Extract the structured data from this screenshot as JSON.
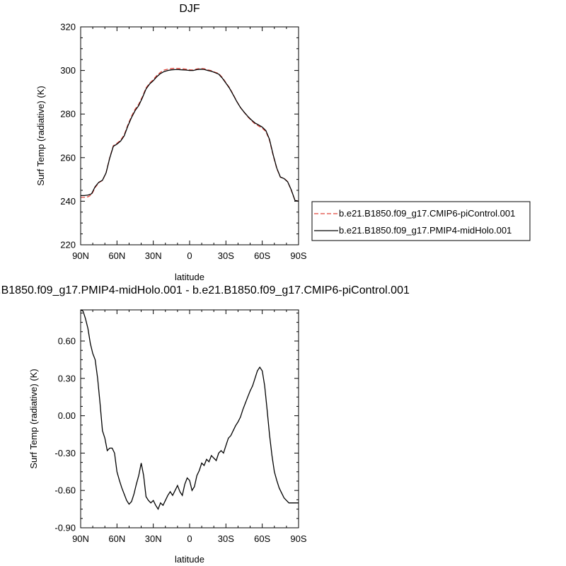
{
  "chart_data": [
    {
      "type": "line",
      "title": "DJF",
      "xlabel": "latitude",
      "ylabel": "Surf Temp (radiative) (K)",
      "xlim": [
        90,
        -90
      ],
      "ylim": [
        220,
        320
      ],
      "x_ticks": [
        {
          "value": 90,
          "label": "90N"
        },
        {
          "value": 60,
          "label": "60N"
        },
        {
          "value": 30,
          "label": "30N"
        },
        {
          "value": 0,
          "label": "0"
        },
        {
          "value": -30,
          "label": "30S"
        },
        {
          "value": -60,
          "label": "60S"
        },
        {
          "value": -90,
          "label": "90S"
        }
      ],
      "y_ticks": [
        {
          "value": 220,
          "label": "220"
        },
        {
          "value": 240,
          "label": "240"
        },
        {
          "value": 260,
          "label": "260"
        },
        {
          "value": 280,
          "label": "280"
        },
        {
          "value": 300,
          "label": "300"
        },
        {
          "value": 320,
          "label": "320"
        }
      ],
      "legend_position": "right",
      "series": [
        {
          "name": "b.e21.B1850.f09_g17.CMIP6-piControl.001",
          "color": "#e0463c",
          "dash": "dashed",
          "x": [
            90,
            87,
            84,
            81,
            78,
            75,
            72,
            69,
            66,
            63,
            60,
            57,
            54,
            51,
            48,
            45,
            42,
            39,
            36,
            33,
            30,
            27,
            24,
            21,
            18,
            15,
            12,
            9,
            6,
            3,
            0,
            -3,
            -6,
            -9,
            -12,
            -15,
            -18,
            -21,
            -24,
            -27,
            -30,
            -33,
            -36,
            -39,
            -42,
            -45,
            -48,
            -51,
            -54,
            -57,
            -60,
            -63,
            -66,
            -69,
            -72,
            -75,
            -78,
            -81,
            -84,
            -87,
            -90
          ],
          "y": [
            241.8,
            241.8,
            242.0,
            243.0,
            246.3,
            248.5,
            249.5,
            253.0,
            260.0,
            265.5,
            266.6,
            268.0,
            270.5,
            275.0,
            279.0,
            282.2,
            284.5,
            288.0,
            292.0,
            294.2,
            295.8,
            297.8,
            299.2,
            300.2,
            300.6,
            300.9,
            301.0,
            300.9,
            300.8,
            300.6,
            300.3,
            300.2,
            300.7,
            300.9,
            300.8,
            300.3,
            299.9,
            299.2,
            298.6,
            296.8,
            294.4,
            292.0,
            289.0,
            285.8,
            283.0,
            280.8,
            278.8,
            277.0,
            275.5,
            274.5,
            273.5,
            272.0,
            268.0,
            261.0,
            255.0,
            251.0,
            250.5,
            249.0,
            245.0,
            240.5,
            240.0
          ]
        },
        {
          "name": "b.e21.B1850.f09_g17.PMIP4-midHolo.001",
          "color": "#000000",
          "dash": "solid",
          "x": [
            90,
            87,
            84,
            81,
            78,
            75,
            72,
            69,
            66,
            63,
            60,
            57,
            54,
            51,
            48,
            45,
            42,
            39,
            36,
            33,
            30,
            27,
            24,
            21,
            18,
            15,
            12,
            9,
            6,
            3,
            0,
            -3,
            -6,
            -9,
            -12,
            -15,
            -18,
            -21,
            -24,
            -27,
            -30,
            -33,
            -36,
            -39,
            -42,
            -45,
            -48,
            -51,
            -54,
            -57,
            -60,
            -63,
            -66,
            -69,
            -72,
            -75,
            -78,
            -81,
            -84,
            -87,
            -90
          ],
          "y": [
            242.6,
            242.6,
            242.8,
            243.4,
            246.7,
            248.7,
            249.6,
            253.0,
            259.8,
            265.2,
            266.2,
            267.6,
            270.0,
            274.5,
            278.4,
            281.6,
            283.9,
            287.5,
            291.5,
            293.8,
            295.3,
            297.2,
            298.6,
            299.5,
            300.0,
            300.3,
            300.4,
            300.4,
            300.3,
            300.2,
            300.0,
            300.0,
            300.4,
            300.6,
            300.5,
            300.0,
            299.6,
            299.0,
            298.3,
            296.5,
            294.2,
            291.8,
            288.8,
            285.7,
            283.0,
            280.9,
            279.0,
            277.3,
            275.9,
            275.0,
            274.0,
            272.4,
            268.4,
            261.3,
            255.2,
            251.1,
            250.4,
            248.9,
            245.2,
            240.4,
            240.0
          ]
        }
      ]
    },
    {
      "type": "line",
      "title": "b.e21.B1850.f09_g17.PMIP4-midHolo.001 - b.e21.B1850.f09_g17.CMIP6-piControl.001",
      "xlabel": "latitude",
      "ylabel": "Surf Temp (radiative) (K)",
      "xlim": [
        90,
        -90
      ],
      "ylim": [
        -0.9,
        0.85
      ],
      "x_ticks": [
        {
          "value": 90,
          "label": "90N"
        },
        {
          "value": 60,
          "label": "60N"
        },
        {
          "value": 30,
          "label": "30N"
        },
        {
          "value": 0,
          "label": "0"
        },
        {
          "value": -30,
          "label": "30S"
        },
        {
          "value": -60,
          "label": "60S"
        },
        {
          "value": -90,
          "label": "90S"
        }
      ],
      "y_ticks": [
        {
          "value": -0.9,
          "label": "-0.90"
        },
        {
          "value": -0.6,
          "label": "-0.60"
        },
        {
          "value": -0.3,
          "label": "-0.30"
        },
        {
          "value": 0.0,
          "label": "0.00"
        },
        {
          "value": 0.3,
          "label": "0.30"
        },
        {
          "value": 0.6,
          "label": "0.60"
        }
      ],
      "series": [
        {
          "color": "#000000",
          "dash": "solid",
          "x": [
            90,
            88,
            86,
            84,
            82,
            80,
            78,
            76,
            74,
            72,
            70,
            68,
            66,
            64,
            62,
            60,
            58,
            56,
            54,
            52,
            50,
            48,
            46,
            44,
            42,
            40,
            38,
            36,
            34,
            32,
            30,
            28,
            26,
            24,
            22,
            20,
            18,
            16,
            14,
            12,
            10,
            8,
            6,
            4,
            2,
            0,
            -2,
            -4,
            -6,
            -8,
            -10,
            -12,
            -14,
            -16,
            -18,
            -20,
            -22,
            -24,
            -26,
            -28,
            -30,
            -32,
            -34,
            -36,
            -38,
            -40,
            -42,
            -44,
            -46,
            -48,
            -50,
            -52,
            -54,
            -56,
            -58,
            -60,
            -62,
            -64,
            -66,
            -68,
            -70,
            -72,
            -74,
            -76,
            -78,
            -80,
            -82,
            -84,
            -86,
            -88,
            -90
          ],
          "y": [
            0.85,
            0.84,
            0.78,
            0.7,
            0.58,
            0.5,
            0.45,
            0.3,
            0.1,
            -0.12,
            -0.18,
            -0.28,
            -0.26,
            -0.26,
            -0.3,
            -0.45,
            -0.52,
            -0.58,
            -0.63,
            -0.68,
            -0.71,
            -0.69,
            -0.63,
            -0.55,
            -0.48,
            -0.38,
            -0.48,
            -0.65,
            -0.68,
            -0.7,
            -0.68,
            -0.72,
            -0.75,
            -0.7,
            -0.72,
            -0.68,
            -0.64,
            -0.61,
            -0.64,
            -0.6,
            -0.56,
            -0.61,
            -0.64,
            -0.55,
            -0.5,
            -0.52,
            -0.6,
            -0.57,
            -0.48,
            -0.44,
            -0.38,
            -0.4,
            -0.35,
            -0.37,
            -0.32,
            -0.34,
            -0.36,
            -0.3,
            -0.28,
            -0.3,
            -0.24,
            -0.18,
            -0.16,
            -0.12,
            -0.08,
            -0.05,
            -0.01,
            0.05,
            0.1,
            0.15,
            0.2,
            0.24,
            0.3,
            0.36,
            0.39,
            0.36,
            0.24,
            0.05,
            -0.15,
            -0.32,
            -0.45,
            -0.52,
            -0.58,
            -0.62,
            -0.66,
            -0.68,
            -0.7,
            -0.7,
            -0.7,
            -0.7,
            -0.7
          ]
        }
      ]
    }
  ]
}
